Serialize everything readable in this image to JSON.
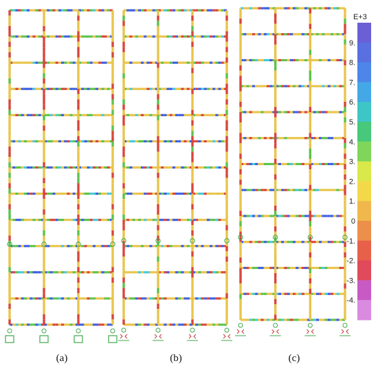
{
  "figure": {
    "panels": [
      {
        "id": "a",
        "label": "(a)",
        "bays": 3,
        "stories": 12,
        "support": "box"
      },
      {
        "id": "b",
        "label": "(b)",
        "bays": 3,
        "stories": 12,
        "support": "spring"
      },
      {
        "id": "c",
        "label": "(c)",
        "bays": 3,
        "stories": 12,
        "support": "spring"
      }
    ],
    "color_scale": {
      "unit": "E+3",
      "ticks": [
        "9.",
        "8.",
        "7.",
        "6.",
        "5.",
        "4.",
        "3.",
        "2.",
        "1.",
        "0",
        "-1.",
        "-2.",
        "-3.",
        "-4."
      ],
      "colors": [
        "#6b5fd6",
        "#5a6fe0",
        "#4d86e8",
        "#44a8e6",
        "#3ec6c6",
        "#47c87a",
        "#7fd65a",
        "#d9e84a",
        "#f3d94a",
        "#f0b84c",
        "#ec8f4a",
        "#e7604a",
        "#e04a5a",
        "#c85ac4",
        "#d98be0"
      ]
    },
    "colors": {
      "frame_base": "#e8c44a",
      "frame_red": "#d8453a",
      "frame_green": "#5cc24a",
      "frame_blue": "#3d5fe0",
      "frame_cyan": "#47c8d8",
      "support": "#3fa84a",
      "spring_label": "#c23a3a"
    }
  }
}
